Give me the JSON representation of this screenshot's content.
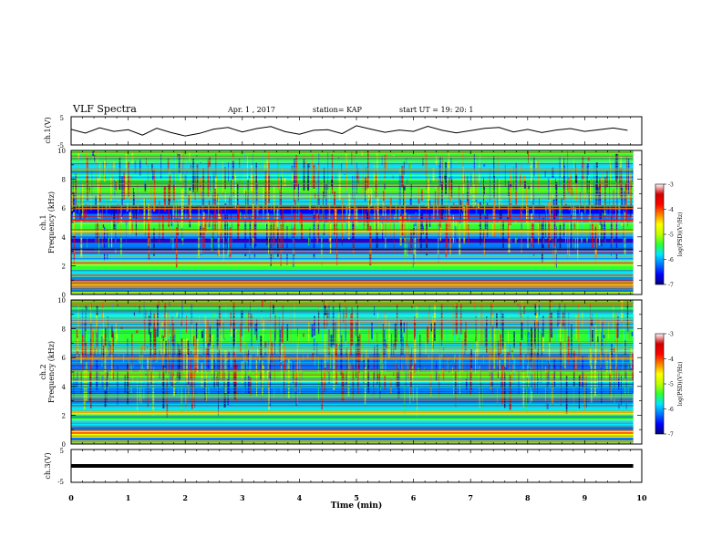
{
  "header": {
    "title": "VLF Spectra",
    "date": "Apr. 1 , 2017",
    "station": "station= KAP",
    "start": "start UT =  19: 20: 1"
  },
  "colors": {
    "colormap": [
      "#00007a",
      "#0000ff",
      "#0077ff",
      "#00e6ff",
      "#30ff30",
      "#c0ff00",
      "#ffff00",
      "#ff8000",
      "#ff0000",
      "#d00000",
      "#ffffff"
    ],
    "trace": "#000000",
    "axis": "#000000"
  },
  "chart_data": [
    {
      "type": "line",
      "id": "ch1-waveform",
      "ylabel": "ch.1(V)",
      "ylim": [
        -5,
        5
      ],
      "yticks": [
        "5",
        "-5"
      ],
      "x": [
        0,
        0.25,
        0.5,
        0.75,
        1,
        1.25,
        1.5,
        1.75,
        2,
        2.25,
        2.5,
        2.75,
        3,
        3.25,
        3.5,
        3.75,
        4,
        4.25,
        4.5,
        4.75,
        5,
        5.25,
        5.5,
        5.75,
        6,
        6.25,
        6.5,
        6.75,
        7,
        7.25,
        7.5,
        7.75,
        8,
        8.25,
        8.5,
        8.75,
        9,
        9.25,
        9.5,
        9.75
      ],
      "y": [
        0.5,
        -0.8,
        1.1,
        -0.2,
        0.4,
        -1.5,
        0.9,
        -0.6,
        -1.8,
        -0.9,
        0.6,
        1.2,
        -0.4,
        0.8,
        1.5,
        -0.3,
        -1.2,
        0.2,
        0.4,
        -1.0,
        1.8,
        0.6,
        -0.5,
        0.3,
        -0.2,
        1.6,
        0.2,
        -0.7,
        0.1,
        0.9,
        1.2,
        -0.4,
        0.5,
        -0.6,
        0.3,
        0.8,
        -0.2,
        0.4,
        1.0,
        0.2
      ],
      "xlim": [
        0,
        10
      ]
    },
    {
      "type": "heatmap",
      "id": "ch1-spectrogram",
      "ylabel": "ch.1\nFrequency (kHz)",
      "ylim": [
        0,
        10
      ],
      "yticks": [
        "0",
        "2",
        "4",
        "6",
        "8",
        "10"
      ],
      "xlim": [
        0,
        10
      ],
      "colorbar": {
        "label": "log(PSD)(V²/Hz)",
        "range": [
          -7,
          -3
        ],
        "ticks": [
          "-3",
          "-4",
          "-5",
          "-6",
          "-7"
        ]
      }
    },
    {
      "type": "heatmap",
      "id": "ch2-spectrogram",
      "ylabel": "ch.2\nFrequency (kHz)",
      "ylim": [
        0,
        10
      ],
      "yticks": [
        "0",
        "2",
        "4",
        "6",
        "8",
        "10"
      ],
      "xlim": [
        0,
        10
      ],
      "colorbar": {
        "label": "log(PSD)(V²/Hz)",
        "range": [
          -7,
          -3
        ],
        "ticks": [
          "-3",
          "-4",
          "-5",
          "-6",
          "-7"
        ]
      }
    },
    {
      "type": "line",
      "id": "ch3-waveform",
      "ylabel": "ch.3(V)",
      "ylim": [
        -5,
        5
      ],
      "yticks": [
        "5",
        "-5"
      ],
      "x": [
        0,
        9.85
      ],
      "y": [
        0,
        0
      ],
      "xlim": [
        0,
        10
      ]
    }
  ],
  "xaxis": {
    "label": "Time (min)",
    "ticks": [
      "0",
      "1",
      "2",
      "3",
      "4",
      "5",
      "6",
      "7",
      "8",
      "9",
      "10"
    ]
  }
}
